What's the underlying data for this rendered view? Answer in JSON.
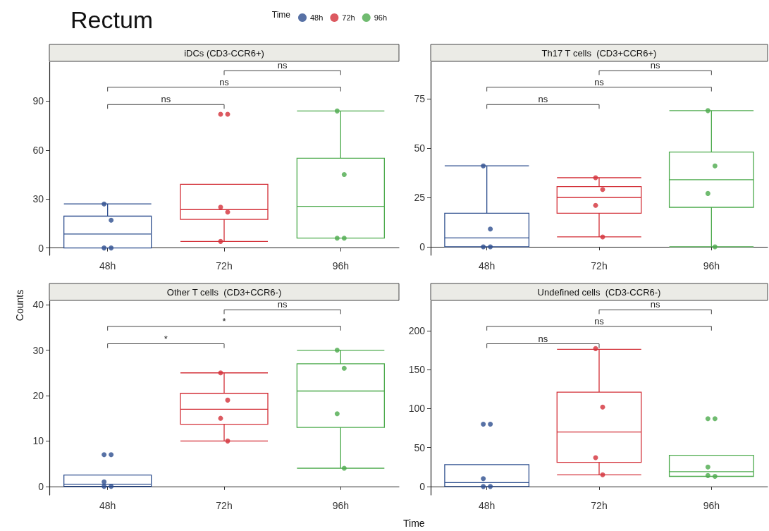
{
  "chart_data": [
    {
      "type": "box",
      "title": "Rectum",
      "subtitle": "iDCs (CD3-CCR6+)",
      "categories": [
        "48h",
        "72h",
        "96h"
      ],
      "ylim": [
        -4.5,
        114
      ],
      "yticks": [
        0,
        30,
        60,
        90
      ],
      "marker": "circle",
      "legend": "top",
      "legend_title": "Time",
      "boxes": [
        {
          "low": 0,
          "q1": 0,
          "median": 8.5,
          "q3": 19.5,
          "high": 27
        },
        {
          "low": 4,
          "q1": 17.5,
          "median": 23.5,
          "q3": 39,
          "high": 39
        },
        {
          "low": 6,
          "q1": 6,
          "median": 25.5,
          "q3": 55,
          "high": 84
        }
      ],
      "colors": [
        "#2d4e8e",
        "#d33038",
        "#4caa4c"
      ],
      "series": [
        {
          "name": "48h",
          "type": "scatter",
          "color": "#2d4e8e",
          "x": [
            "48h",
            "48h",
            "48h",
            "48h"
          ],
          "values": [
            27,
            17,
            0,
            0
          ]
        },
        {
          "name": "72h",
          "type": "scatter",
          "color": "#d33038",
          "x": [
            "72h",
            "72h",
            "72h",
            "72h",
            "72h"
          ],
          "values": [
            82,
            82,
            25,
            22,
            4
          ]
        },
        {
          "name": "96h",
          "type": "scatter",
          "color": "#4caa4c",
          "x": [
            "96h",
            "96h",
            "96h",
            "96h"
          ],
          "values": [
            84,
            45,
            6,
            6
          ]
        }
      ],
      "annotations": [
        "ns",
        "ns",
        "ns"
      ]
    },
    {
      "type": "box",
      "title": "Th17 T cells  (CD3+CCR6+)",
      "categories": [
        "48h",
        "72h",
        "96h"
      ],
      "ylim": [
        -4.3,
        93.6
      ],
      "yticks": [
        0,
        25,
        50,
        75
      ],
      "marker": "circle",
      "boxes": [
        {
          "low": 0,
          "q1": 0,
          "median": 4.5,
          "q3": 17,
          "high": 41
        },
        {
          "low": 5,
          "q1": 17,
          "median": 25,
          "q3": 30.5,
          "high": 35
        },
        {
          "low": 0,
          "q1": 20,
          "median": 34,
          "q3": 48,
          "high": 69
        }
      ],
      "colors": [
        "#2d4e8e",
        "#d33038",
        "#4caa4c"
      ],
      "series": [
        {
          "type": "scatter",
          "color": "#2d4e8e",
          "x": [
            "48h",
            "48h",
            "48h",
            "48h"
          ],
          "values": [
            41,
            9,
            0,
            0
          ]
        },
        {
          "type": "scatter",
          "color": "#d33038",
          "x": [
            "72h",
            "72h",
            "72h",
            "72h"
          ],
          "values": [
            35,
            29,
            21,
            5
          ]
        },
        {
          "type": "scatter",
          "color": "#4caa4c",
          "x": [
            "96h",
            "96h",
            "96h",
            "96h"
          ],
          "values": [
            69,
            41,
            27,
            0
          ]
        }
      ],
      "annotations": [
        "ns",
        "ns",
        "ns"
      ]
    },
    {
      "type": "box",
      "title": "Other T cells  (CD3+CCR6-)",
      "ylabel": "Counts",
      "categories": [
        "48h",
        "72h",
        "96h"
      ],
      "ylim": [
        -1.9,
        40.8
      ],
      "yticks": [
        0,
        10,
        20,
        30,
        40
      ],
      "marker": "circle",
      "boxes": [
        {
          "low": 0,
          "q1": 0,
          "median": 0.5,
          "q3": 2.5,
          "high": 2.5
        },
        {
          "low": 10,
          "q1": 13.7,
          "median": 17,
          "q3": 20.5,
          "high": 25
        },
        {
          "low": 4,
          "q1": 13,
          "median": 21,
          "q3": 27,
          "high": 30
        }
      ],
      "colors": [
        "#2d4e8e",
        "#d33038",
        "#4caa4c"
      ],
      "series": [
        {
          "type": "scatter",
          "color": "#2d4e8e",
          "x": [
            "48h",
            "48h",
            "48h",
            "48h",
            "48h"
          ],
          "values": [
            7,
            7,
            1,
            0,
            0
          ]
        },
        {
          "type": "scatter",
          "color": "#d33038",
          "x": [
            "72h",
            "72h",
            "72h",
            "72h"
          ],
          "values": [
            25,
            19,
            15,
            10
          ]
        },
        {
          "type": "scatter",
          "color": "#4caa4c",
          "x": [
            "96h",
            "96h",
            "96h",
            "96h"
          ],
          "values": [
            30,
            26,
            16,
            4
          ]
        }
      ],
      "annotations": [
        "*",
        "*",
        "ns"
      ]
    },
    {
      "type": "box",
      "title": "Undefined cells  (CD3-CCR6-)",
      "xlabel": "Time",
      "categories": [
        "48h",
        "72h",
        "96h"
      ],
      "ylim": [
        -11,
        238
      ],
      "yticks": [
        0,
        50,
        100,
        150,
        200
      ],
      "marker": "circle",
      "boxes": [
        {
          "low": 0,
          "q1": 0,
          "median": 5,
          "q3": 28,
          "high": 28
        },
        {
          "low": 15,
          "q1": 31,
          "median": 70,
          "q3": 121,
          "high": 176
        },
        {
          "low": 13,
          "q1": 13,
          "median": 19,
          "q3": 40,
          "high": 40
        }
      ],
      "colors": [
        "#2d4e8e",
        "#d33038",
        "#4caa4c"
      ],
      "series": [
        {
          "type": "scatter",
          "color": "#2d4e8e",
          "x": [
            "48h",
            "48h",
            "48h",
            "48h",
            "48h"
          ],
          "values": [
            80,
            80,
            10,
            0,
            0
          ]
        },
        {
          "type": "scatter",
          "color": "#d33038",
          "x": [
            "72h",
            "72h",
            "72h",
            "72h"
          ],
          "values": [
            177,
            102,
            37,
            15
          ]
        },
        {
          "type": "scatter",
          "color": "#4caa4c",
          "x": [
            "96h",
            "96h",
            "96h",
            "96h",
            "96h"
          ],
          "values": [
            87,
            87,
            25,
            13,
            14
          ]
        }
      ],
      "annotations": [
        "ns",
        "ns",
        "ns"
      ]
    }
  ]
}
